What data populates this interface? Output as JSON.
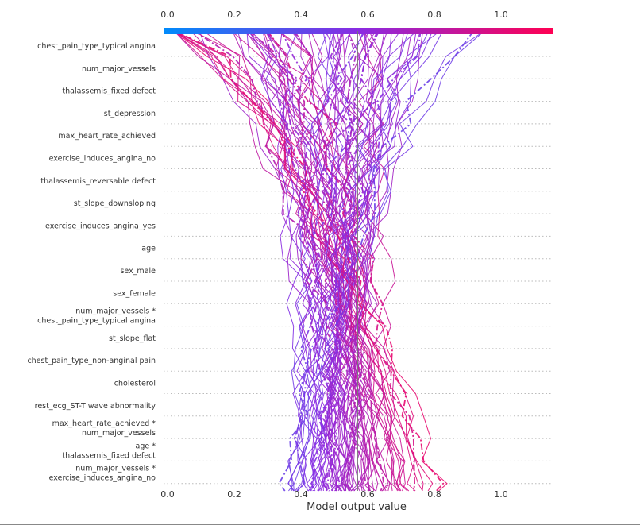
{
  "chart_data": {
    "type": "decision_plot",
    "xlabel": "Model output value",
    "xlim": [
      0.0,
      1.15
    ],
    "xticks": [
      0.0,
      0.2,
      0.4,
      0.6,
      0.8,
      1.0
    ],
    "xtick_labels": [
      "0.0",
      "0.2",
      "0.4",
      "0.6",
      "0.8",
      "1.0"
    ],
    "base_value": 0.57,
    "colormap": {
      "low": "#008bfb",
      "mid": "#8a2be2",
      "high": "#ff0052"
    },
    "features_top_to_bottom": [
      [
        "chest_pain_type_typical angina"
      ],
      [
        "num_major_vessels"
      ],
      [
        "thalassemis_fixed defect"
      ],
      [
        "st_depression"
      ],
      [
        "max_heart_rate_achieved"
      ],
      [
        "exercise_induces_angina_no"
      ],
      [
        "thalassemis_reversable defect"
      ],
      [
        "st_slope_downsloping"
      ],
      [
        "exercise_induces_angina_yes"
      ],
      [
        "age"
      ],
      [
        "sex_male"
      ],
      [
        "sex_female"
      ],
      [
        "num_major_vessels *",
        "chest_pain_type_typical angina"
      ],
      [
        "st_slope_flat"
      ],
      [
        "chest_pain_type_non-anginal pain"
      ],
      [
        "cholesterol"
      ],
      [
        "rest_ecg_ST-T wave abnormality"
      ],
      [
        "max_heart_rate_achieved *",
        "num_major_vessels"
      ],
      [
        "age *",
        "thalassemis_fixed defect"
      ],
      [
        "num_major_vessels *",
        "exercise_induces_angina_no"
      ]
    ],
    "sample_final_outputs": [
      0.37,
      0.38,
      0.41,
      0.43,
      0.45,
      0.47,
      0.49,
      0.5,
      0.51,
      0.52,
      0.53,
      0.54,
      0.55,
      0.56,
      0.57,
      0.58,
      0.6,
      0.61,
      0.62,
      0.64,
      0.66,
      0.68,
      0.7,
      0.72,
      0.75,
      0.8
    ]
  }
}
